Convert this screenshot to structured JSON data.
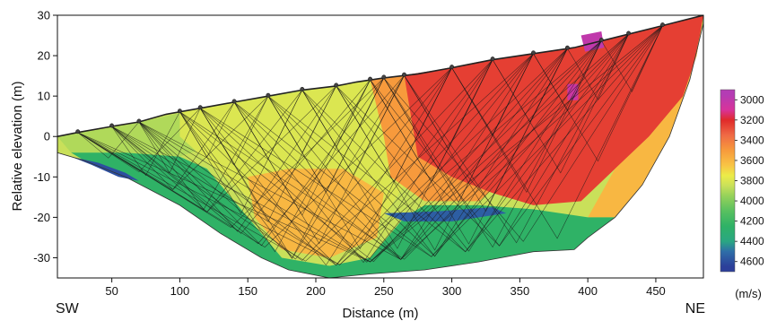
{
  "chart_data": {
    "type": "heatmap",
    "title": "",
    "xlabel": "Distance (m)",
    "ylabel": "Relative elevation (m)",
    "xlim": [
      10,
      485
    ],
    "ylim": [
      -35,
      30
    ],
    "x_ticks": [
      50,
      100,
      150,
      200,
      250,
      300,
      350,
      400,
      450
    ],
    "y_ticks": [
      30,
      20,
      10,
      0,
      -10,
      -20,
      -30
    ],
    "direction_labels": {
      "left": "SW",
      "right": "NE"
    },
    "colorbar": {
      "unit": "(m/s)",
      "ticks": [
        3000,
        3200,
        3400,
        3600,
        3800,
        4000,
        4200,
        4400,
        4600
      ],
      "stops": [
        {
          "v": 2950,
          "color": "#b43cb4"
        },
        {
          "v": 3100,
          "color": "#d8339a"
        },
        {
          "v": 3200,
          "color": "#e02a2a"
        },
        {
          "v": 3350,
          "color": "#ef6a45"
        },
        {
          "v": 3500,
          "color": "#f79a3c"
        },
        {
          "v": 3650,
          "color": "#f8c545"
        },
        {
          "v": 3750,
          "color": "#ecec48"
        },
        {
          "v": 3850,
          "color": "#c9e05a"
        },
        {
          "v": 3950,
          "color": "#96d25a"
        },
        {
          "v": 4100,
          "color": "#58c060"
        },
        {
          "v": 4250,
          "color": "#2fb266"
        },
        {
          "v": 4400,
          "color": "#2aa782"
        },
        {
          "v": 4500,
          "color": "#2e6ea8"
        },
        {
          "v": 4650,
          "color": "#2c3f9a"
        }
      ]
    },
    "surface_profile": [
      [
        10,
        0
      ],
      [
        25,
        1
      ],
      [
        50,
        2.5
      ],
      [
        70,
        3.6
      ],
      [
        90,
        5.5
      ],
      [
        115,
        7
      ],
      [
        140,
        8.5
      ],
      [
        165,
        10
      ],
      [
        190,
        11.5
      ],
      [
        215,
        12.5
      ],
      [
        230,
        13.5
      ],
      [
        250,
        14.5
      ],
      [
        275,
        15.5
      ],
      [
        300,
        17
      ],
      [
        330,
        19
      ],
      [
        360,
        20.5
      ],
      [
        390,
        22
      ],
      [
        420,
        24.5
      ],
      [
        450,
        27
      ],
      [
        485,
        30
      ]
    ],
    "bottom_profile": [
      [
        10,
        -4
      ],
      [
        30,
        -6
      ],
      [
        60,
        -10
      ],
      [
        100,
        -17
      ],
      [
        130,
        -24
      ],
      [
        160,
        -30
      ],
      [
        180,
        -33
      ],
      [
        210,
        -35
      ],
      [
        240,
        -34
      ],
      [
        280,
        -33
      ],
      [
        320,
        -31
      ],
      [
        360,
        -28.5
      ],
      [
        390,
        -28
      ],
      [
        400,
        -25
      ],
      [
        420,
        -20
      ],
      [
        440,
        -12
      ],
      [
        460,
        0
      ],
      [
        475,
        14
      ],
      [
        485,
        28
      ]
    ],
    "velocity_zones": [
      {
        "name": "near-surface-west",
        "velocity": 3900,
        "polygon": [
          [
            10,
            0
          ],
          [
            60,
            2.8
          ],
          [
            110,
            6.5
          ],
          [
            150,
            8.8
          ],
          [
            170,
            10
          ],
          [
            140,
            0
          ],
          [
            100,
            -5
          ],
          [
            60,
            -4
          ],
          [
            20,
            -4
          ]
        ]
      },
      {
        "name": "central-yellow",
        "velocity": 3800,
        "polygon": [
          [
            100,
            6
          ],
          [
            170,
            10
          ],
          [
            215,
            12.5
          ],
          [
            260,
            14.8
          ],
          [
            270,
            5
          ],
          [
            265,
            -12
          ],
          [
            250,
            -20
          ],
          [
            215,
            -26
          ],
          [
            180,
            -22
          ],
          [
            150,
            -15
          ],
          [
            120,
            -6
          ],
          [
            100,
            0
          ]
        ]
      },
      {
        "name": "central-orange",
        "velocity": 3600,
        "polygon": [
          [
            150,
            -10
          ],
          [
            180,
            -8
          ],
          [
            220,
            -8
          ],
          [
            250,
            -14
          ],
          [
            245,
            -25
          ],
          [
            210,
            -30
          ],
          [
            175,
            -28
          ],
          [
            155,
            -20
          ]
        ]
      },
      {
        "name": "eastern-orange",
        "velocity": 3500,
        "polygon": [
          [
            240,
            14
          ],
          [
            275,
            15.5
          ],
          [
            320,
            18.5
          ],
          [
            340,
            15
          ],
          [
            345,
            5
          ],
          [
            340,
            -10
          ],
          [
            320,
            -16
          ],
          [
            280,
            -16
          ],
          [
            255,
            -10
          ],
          [
            250,
            0
          ]
        ]
      },
      {
        "name": "eastern-red",
        "velocity": 3250,
        "polygon": [
          [
            265,
            15.2
          ],
          [
            300,
            17
          ],
          [
            330,
            19
          ],
          [
            360,
            20.5
          ],
          [
            390,
            22
          ],
          [
            420,
            24.5
          ],
          [
            450,
            27
          ],
          [
            485,
            30
          ],
          [
            480,
            20
          ],
          [
            470,
            10
          ],
          [
            445,
            0
          ],
          [
            420,
            -8
          ],
          [
            395,
            -16
          ],
          [
            360,
            -17
          ],
          [
            330,
            -14
          ],
          [
            300,
            -10
          ],
          [
            275,
            -5
          ],
          [
            270,
            5
          ]
        ]
      },
      {
        "name": "magenta-patch-top",
        "velocity": 3000,
        "polygon": [
          [
            395,
            25
          ],
          [
            410,
            26
          ],
          [
            412,
            22
          ],
          [
            398,
            21
          ]
        ]
      },
      {
        "name": "magenta-patch-mid",
        "velocity": 3050,
        "polygon": [
          [
            385,
            13
          ],
          [
            393,
            13
          ],
          [
            393,
            9
          ],
          [
            385,
            9
          ]
        ]
      },
      {
        "name": "east-flank-orange",
        "velocity": 3600,
        "polygon": [
          [
            420,
            -8
          ],
          [
            445,
            0
          ],
          [
            470,
            10
          ],
          [
            480,
            20
          ],
          [
            483,
            26
          ],
          [
            475,
            14
          ],
          [
            460,
            0
          ],
          [
            440,
            -12
          ],
          [
            420,
            -20
          ],
          [
            400,
            -20
          ]
        ]
      },
      {
        "name": "deep-green-west",
        "velocity": 4250,
        "polygon": [
          [
            20,
            -4
          ],
          [
            60,
            -4
          ],
          [
            100,
            -5
          ],
          [
            120,
            -8
          ],
          [
            150,
            -20
          ],
          [
            175,
            -30
          ],
          [
            210,
            -32
          ],
          [
            240,
            -30
          ],
          [
            265,
            -20
          ],
          [
            280,
            -17
          ],
          [
            320,
            -17
          ],
          [
            360,
            -18
          ],
          [
            400,
            -20
          ],
          [
            420,
            -20
          ],
          [
            400,
            -25
          ],
          [
            390,
            -28
          ],
          [
            360,
            -28.5
          ],
          [
            320,
            -31
          ],
          [
            280,
            -33
          ],
          [
            240,
            -34
          ],
          [
            210,
            -35
          ],
          [
            180,
            -33
          ],
          [
            160,
            -30
          ],
          [
            130,
            -24
          ],
          [
            100,
            -17
          ],
          [
            60,
            -10
          ],
          [
            30,
            -6
          ]
        ]
      },
      {
        "name": "blue-west",
        "velocity": 4600,
        "polygon": [
          [
            20,
            -5
          ],
          [
            40,
            -6.5
          ],
          [
            60,
            -9
          ],
          [
            70,
            -11
          ],
          [
            55,
            -10
          ],
          [
            35,
            -7
          ]
        ]
      },
      {
        "name": "blue-east",
        "velocity": 4550,
        "polygon": [
          [
            250,
            -19
          ],
          [
            290,
            -18.5
          ],
          [
            330,
            -17.5
          ],
          [
            340,
            -19
          ],
          [
            300,
            -21
          ],
          [
            265,
            -21
          ]
        ]
      }
    ],
    "receivers_x": [
      25,
      50,
      70,
      100,
      115,
      140,
      165,
      190,
      215,
      240,
      250,
      265,
      300,
      330,
      360,
      385,
      410,
      430,
      455
    ]
  }
}
